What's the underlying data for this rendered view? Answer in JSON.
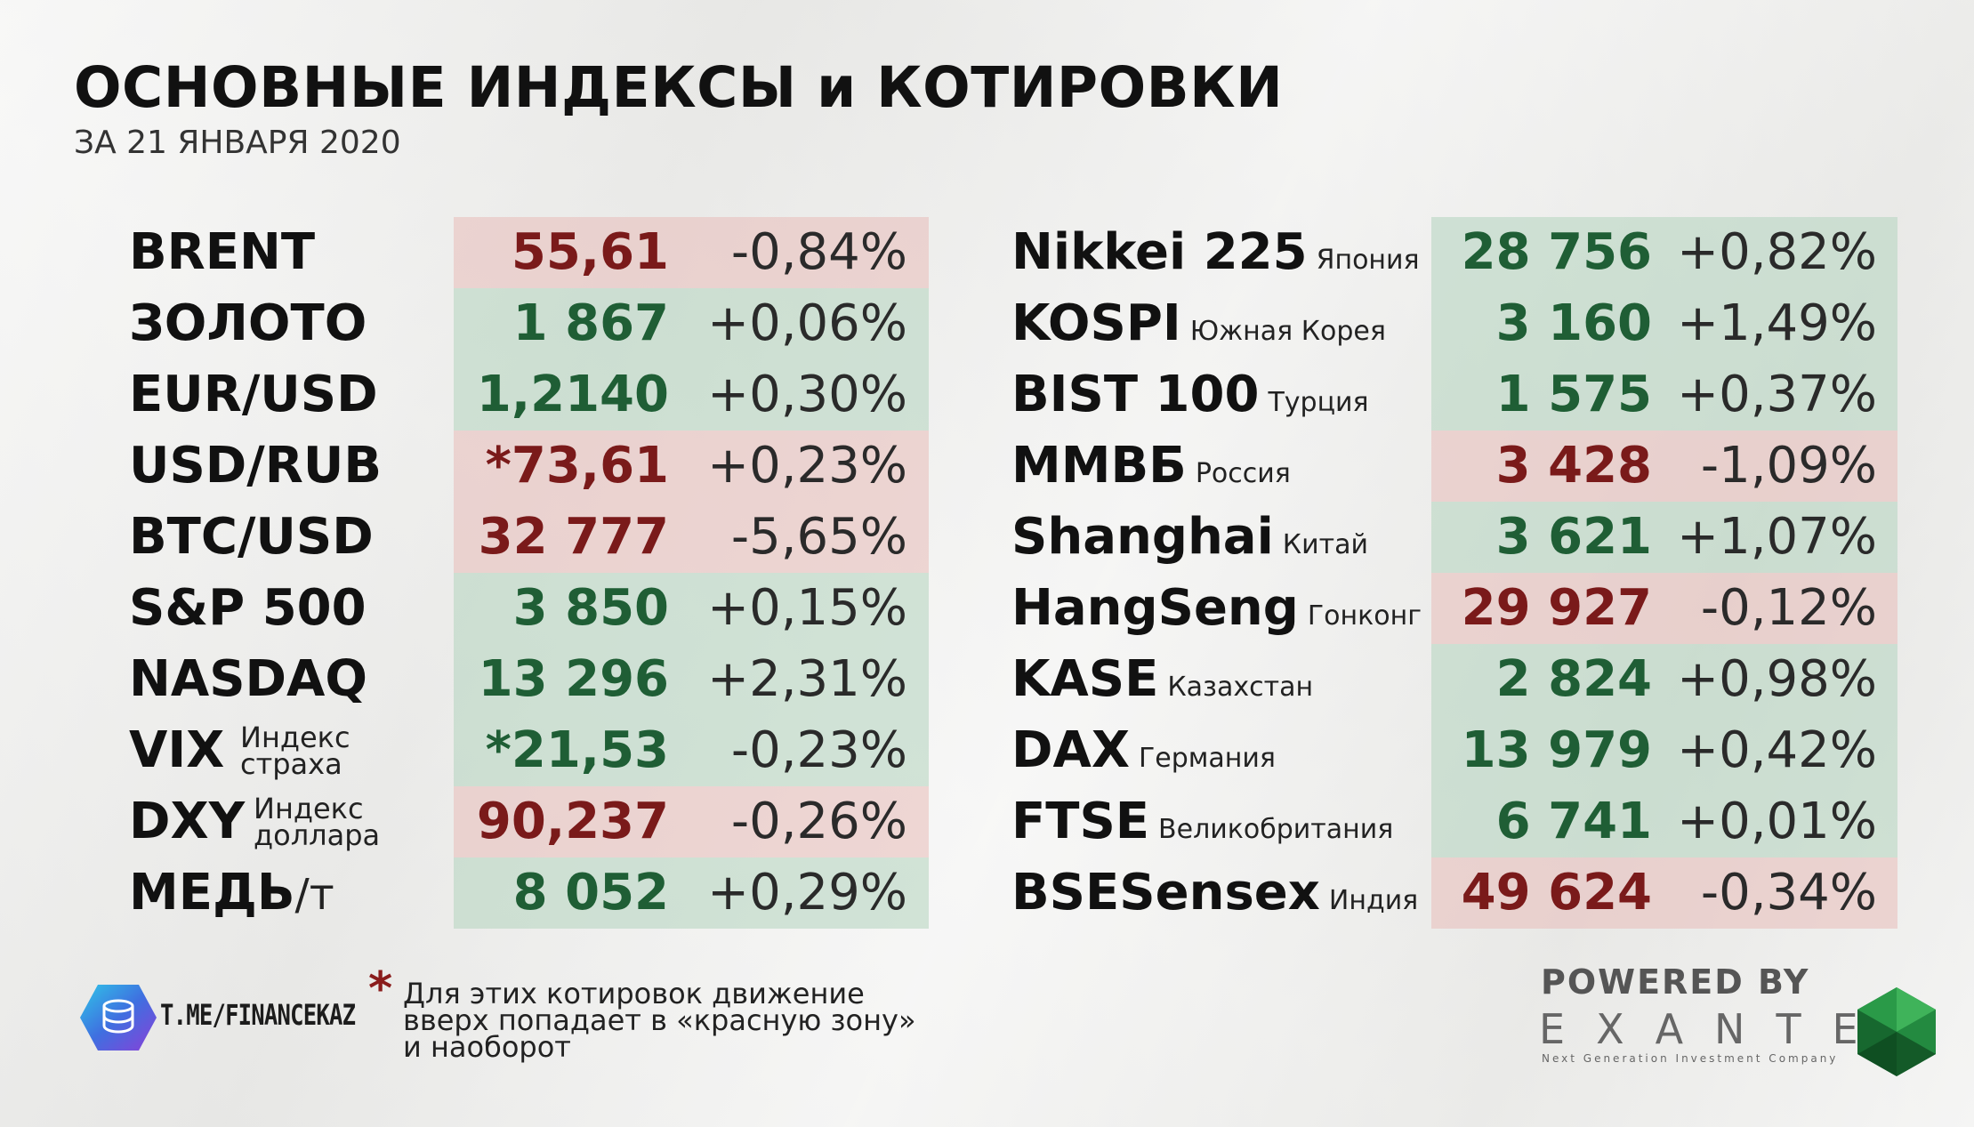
{
  "header": {
    "title": "ОСНОВНЫЕ ИНДЕКСЫ и КОТИРОВКИ",
    "subtitle": "ЗА 21 ЯНВАРЯ 2020"
  },
  "left_table": [
    {
      "name": "BRENT",
      "value": "55,61",
      "change": "-0,84%",
      "trend": "down"
    },
    {
      "name": "ЗОЛОТО",
      "value": "1 867",
      "change": "+0,06%",
      "trend": "up"
    },
    {
      "name": "EUR/USD",
      "value": "1,2140",
      "change": "+0,30%",
      "trend": "up"
    },
    {
      "name": "USD/RUB",
      "value": "*73,61",
      "change": "+0,23%",
      "trend": "down"
    },
    {
      "name": "BTC/USD",
      "value": "32 777",
      "change": "-5,65%",
      "trend": "down"
    },
    {
      "name": "S&P 500",
      "value": "3 850",
      "change": "+0,15%",
      "trend": "up"
    },
    {
      "name": "NASDAQ",
      "value": "13 296",
      "change": "+2,31%",
      "trend": "up"
    },
    {
      "name": "VIX",
      "sub1": "Индекс",
      "sub2": "страха",
      "value": "*21,53",
      "change": "-0,23%",
      "trend": "up"
    },
    {
      "name": "DXY",
      "sub1": "Индекс",
      "sub2": "доллара",
      "value": "90,237",
      "change": "-0,26%",
      "trend": "down"
    },
    {
      "name": "МЕДЬ",
      "unit": "/т",
      "value": "8 052",
      "change": "+0,29%",
      "trend": "up"
    }
  ],
  "right_table": [
    {
      "name": "Nikkei 225",
      "country": "Япония",
      "value": "28 756",
      "change": "+0,82%",
      "trend": "up"
    },
    {
      "name": "KOSPI",
      "country": "Южная Корея",
      "value": "3 160",
      "change": "+1,49%",
      "trend": "up"
    },
    {
      "name": "BIST 100",
      "country": "Турция",
      "value": "1 575",
      "change": "+0,37%",
      "trend": "up"
    },
    {
      "name": "ММВБ",
      "country": "Россия",
      "value": "3 428",
      "change": "-1,09%",
      "trend": "down"
    },
    {
      "name": "Shanghai",
      "country": "Китай",
      "value": "3 621",
      "change": "+1,07%",
      "trend": "up"
    },
    {
      "name": "HangSeng",
      "country": "Гонконг",
      "value": "29 927",
      "change": "-0,12%",
      "trend": "down"
    },
    {
      "name": "KASE",
      "country": "Казахстан",
      "value": "2 824",
      "change": "+0,98%",
      "trend": "up"
    },
    {
      "name": "DAX",
      "country": "Германия",
      "value": "13 979",
      "change": "+0,42%",
      "trend": "up"
    },
    {
      "name": "FTSE",
      "country": "Великобритания",
      "value": "6 741",
      "change": "+0,01%",
      "trend": "up"
    },
    {
      "name": "BSESensex",
      "country": "Индия",
      "value": "49 624",
      "change": "-0,34%",
      "trend": "down"
    }
  ],
  "footnote": {
    "star": "*",
    "line1": "Для этих котировок движение",
    "line2": "вверх попадает в «красную зону»",
    "line3": "и наоборот"
  },
  "channel": {
    "logo_icon": "telegram-coins-icon",
    "label": "T.ME/FINANCEKAZ"
  },
  "sponsor": {
    "powered": "POWERED BY",
    "brand": "EXANTE",
    "tagline": "Next Generation Investment Company",
    "logo_icon": "green-gem-icon"
  },
  "colors": {
    "up_bg": "#bad6c4",
    "down_bg": "#e8c2be",
    "up_text": "#1f5e35",
    "down_text": "#7a1a1a"
  }
}
